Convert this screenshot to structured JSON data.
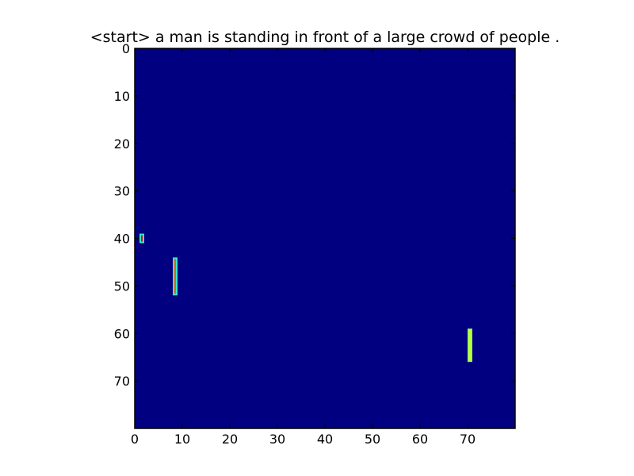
{
  "chart_data": {
    "type": "heatmap",
    "title": "<start> a man is standing in front of a large crowd of people .",
    "xlabel": "",
    "ylabel": "",
    "xlim": [
      0,
      80
    ],
    "ylim": [
      80,
      0
    ],
    "x_ticks": [
      0,
      10,
      20,
      30,
      40,
      50,
      60,
      70
    ],
    "y_ticks": [
      0,
      10,
      20,
      30,
      40,
      50,
      60,
      70
    ],
    "colormap": "jet",
    "background_color": "#000080",
    "grid": false,
    "legend": "none",
    "hotspots": [
      {
        "x": [
          1,
          2
        ],
        "y": [
          39,
          41
        ],
        "edge_color": "#39e6c6",
        "core_color": "#d01010"
      },
      {
        "x": [
          8,
          9
        ],
        "y": [
          44,
          52
        ],
        "edge_color": "#39e6c6",
        "core_color": "#f25b0a"
      },
      {
        "x": [
          70,
          71
        ],
        "y": [
          59,
          66
        ],
        "edge_color": "#a6ff50",
        "core_color": "#c0ff3a"
      }
    ]
  }
}
